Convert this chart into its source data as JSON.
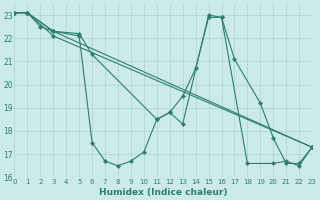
{
  "xlabel": "Humidex (Indice chaleur)",
  "xlim": [
    0,
    23
  ],
  "ylim": [
    16,
    23.5
  ],
  "yticks": [
    16,
    17,
    18,
    19,
    20,
    21,
    22,
    23
  ],
  "xticks": [
    0,
    1,
    2,
    3,
    4,
    5,
    6,
    7,
    8,
    9,
    10,
    11,
    12,
    13,
    14,
    15,
    16,
    17,
    18,
    19,
    20,
    21,
    22,
    23
  ],
  "bg_color": "#cceae7",
  "line_color": "#2e7d70",
  "grid_color": "#aad4ce",
  "lines": [
    {
      "x": [
        0,
        1,
        2,
        3,
        5,
        6,
        11,
        12,
        13,
        14,
        15,
        16,
        17,
        19,
        20,
        21,
        22,
        23
      ],
      "y": [
        23.1,
        23.1,
        22.5,
        22.3,
        22.2,
        21.3,
        18.5,
        18.8,
        19.5,
        20.7,
        22.9,
        22.9,
        21.1,
        19.2,
        17.7,
        16.6,
        16.6,
        17.3
      ]
    },
    {
      "x": [
        0,
        1,
        3,
        5,
        6,
        7,
        8,
        9,
        10,
        11,
        12,
        13,
        15,
        16,
        18,
        20,
        21,
        22,
        23
      ],
      "y": [
        23.1,
        23.1,
        22.3,
        22.1,
        17.5,
        16.7,
        16.5,
        16.7,
        17.1,
        18.5,
        18.8,
        18.3,
        23.0,
        22.9,
        16.6,
        16.6,
        16.7,
        16.5,
        17.3
      ]
    },
    {
      "x": [
        0,
        1,
        3,
        23
      ],
      "y": [
        23.1,
        23.1,
        22.3,
        17.3
      ]
    },
    {
      "x": [
        0,
        1,
        3,
        23
      ],
      "y": [
        23.1,
        23.1,
        22.1,
        17.3
      ]
    }
  ]
}
